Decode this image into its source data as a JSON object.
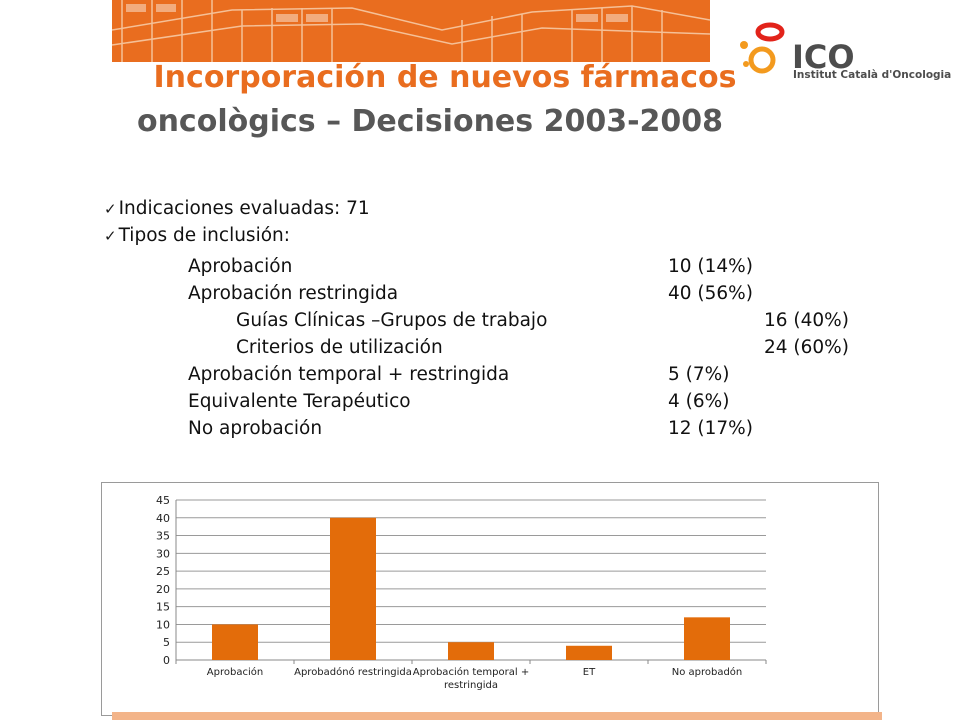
{
  "header": {
    "title_line1": "Incorporación de nuevos fármacos",
    "title_line2": "oncològics – Decisiones 2003-2008",
    "brand_color": "#e96d1f",
    "logo": {
      "name": "ICO",
      "subtitle": "Institut Català d'Oncologia"
    }
  },
  "summary": {
    "evaluated_label": "Indicaciones evaluadas: 71",
    "types_label": "Tipos de inclusión:",
    "items": [
      {
        "label": "Aprobación",
        "value": "10 (14%)"
      },
      {
        "label": "Aprobación restringida",
        "value": "40 (56%)"
      },
      {
        "label": "Guías Clínicas –Grupos de trabajo",
        "value": "16 (40%)"
      },
      {
        "label": "Criterios de utilización",
        "value": "24 (60%)"
      },
      {
        "label": "Aprobación temporal + restringida",
        "value": "5 (7%)"
      },
      {
        "label": "Equivalente Terapéutico",
        "value": "4 (6%)"
      },
      {
        "label": "No aprobación",
        "value": "12 (17%)"
      }
    ]
  },
  "chart_data": {
    "type": "bar",
    "categories": [
      "Aprobación",
      "Aprobadónó restringida",
      "Aprobación temporal + restringida",
      "ET",
      "No aprobadón"
    ],
    "values": [
      10,
      40,
      5,
      4,
      12
    ],
    "ylim": [
      0,
      45
    ],
    "yticks": [
      0,
      5,
      10,
      15,
      20,
      25,
      30,
      35,
      40,
      45
    ],
    "grid": true,
    "legend": "none",
    "bar_color": "#e36c0a",
    "title": "",
    "xlabel": "",
    "ylabel": ""
  }
}
